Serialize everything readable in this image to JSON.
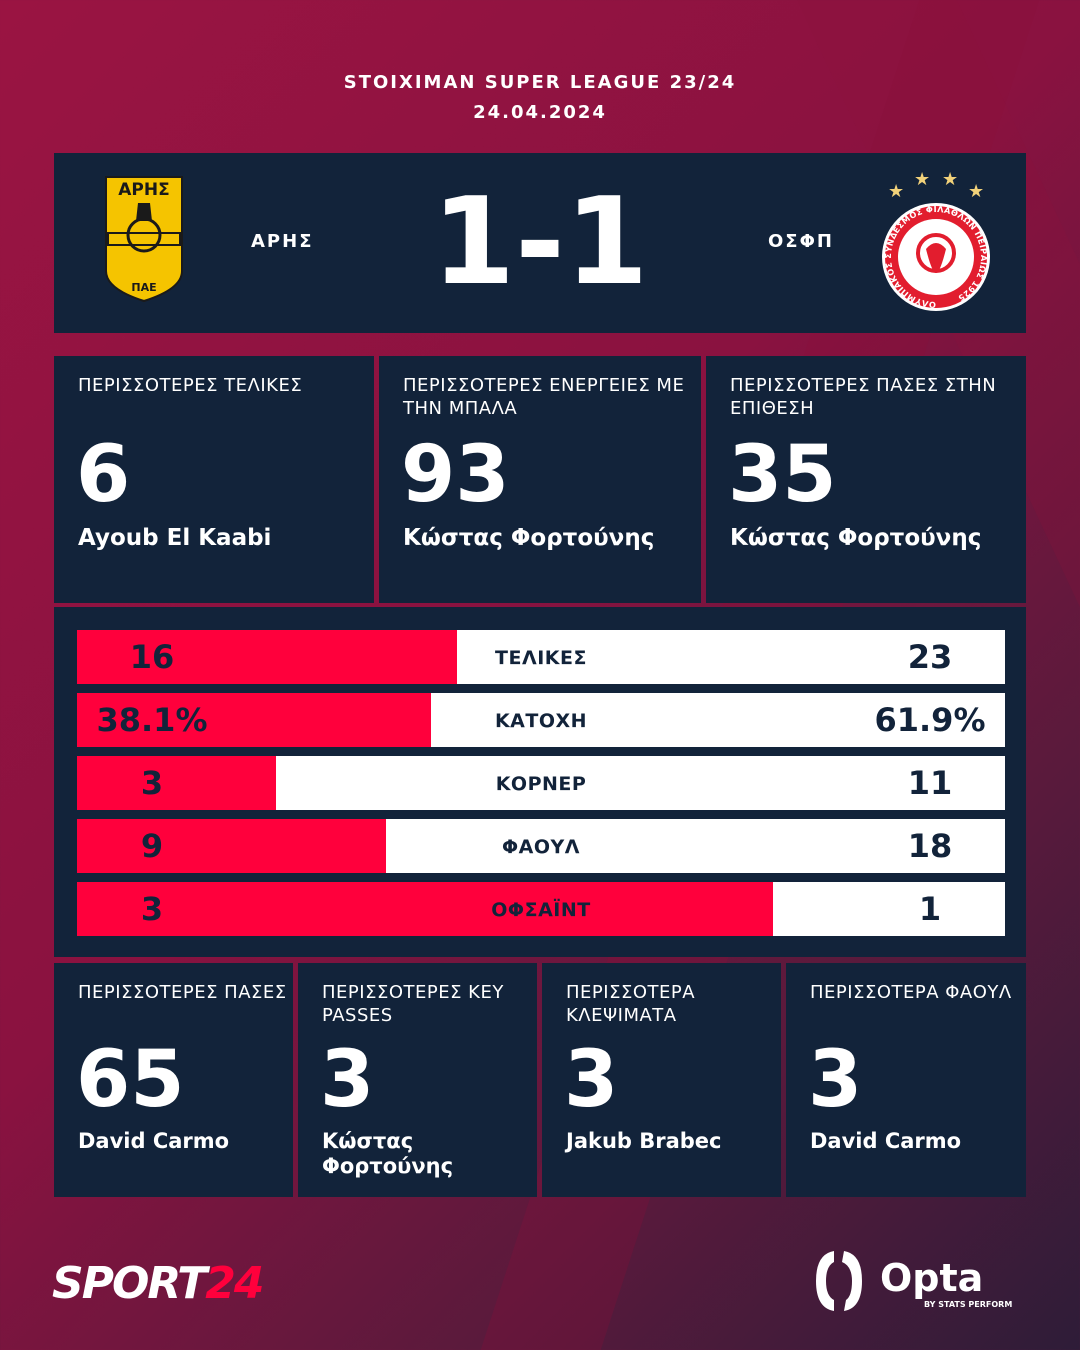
{
  "header": {
    "league": "STOIXIMAN SUPER LEAGUE 23/24",
    "date": "24.04.2024"
  },
  "match": {
    "home": "ΑΡΗΣ",
    "away": "ΟΣΦΠ",
    "score": "1-1",
    "home_logo_text": [
      "ΑΡΗΣ",
      "ΠΑΕ"
    ],
    "away_logo_text": "ΟΛΥΜΠΙΑΚΟΣ ΣΥΝΔΕΣΜΟΣ ΦΙΛΑΘΛΩΝ ΠΕΙΡΑΙΩΣ 1925"
  },
  "top_cards": [
    {
      "title": "ΠΕΡΙΣΣΟΤΕΡΕΣ ΤΕΛΙΚΕΣ",
      "value": "6",
      "player": "Ayoub El Kaabi"
    },
    {
      "title": "ΠΕΡΙΣΣΟΤΕΡΕΣ ΕΝΕΡΓΕΙΕΣ ΜΕ ΤΗΝ ΜΠΑΛΑ",
      "value": "93",
      "player": "Κώστας Φορτούνης"
    },
    {
      "title": "ΠΕΡΙΣΣΟΤΕΡΕΣ ΠΑΣΕΣ ΣΤΗΝ ΕΠΙΘΕΣΗ",
      "value": "35",
      "player": "Κώστας Φορτούνης"
    }
  ],
  "stats": [
    {
      "label": "ΤΕΛΙΚΕΣ",
      "home": "16",
      "away": "23",
      "home_share": 0.41
    },
    {
      "label": "ΚΑΤΟΧΗ",
      "home": "38.1%",
      "away": "61.9%",
      "home_share": 0.381
    },
    {
      "label": "ΚΟΡΝΕΡ",
      "home": "3",
      "away": "11",
      "home_share": 0.214
    },
    {
      "label": "ΦΑΟΥΛ",
      "home": "9",
      "away": "18",
      "home_share": 0.333
    },
    {
      "label": "ΟΦΣΑΪΝΤ",
      "home": "3",
      "away": "1",
      "home_share": 0.75
    }
  ],
  "bottom_cards": [
    {
      "title": "ΠΕΡΙΣΣΟΤΕΡΕΣ ΠΑΣΕΣ",
      "value": "65",
      "player": "David Carmo"
    },
    {
      "title": "ΠΕΡΙΣΣΟΤΕΡΕΣ KEY PASSES",
      "value": "3",
      "player": "Κώστας Φορτούνης"
    },
    {
      "title": "ΠΕΡΙΣΣΟΤΕΡΑ ΚΛΕΨΙΜΑΤΑ",
      "value": "3",
      "player": "Jakub Brabec"
    },
    {
      "title": "ΠΕΡΙΣΣΟΤΕΡΑ ΦΑΟΥΛ",
      "value": "3",
      "player": "David Carmo"
    }
  ],
  "footer": {
    "brand_a": "SPORT",
    "brand_b": "24",
    "opta": "Opta",
    "opta_sub": "BY STATS PERFORM"
  },
  "colors": {
    "navy": "#12233a",
    "red": "#ff003c",
    "background": "#8e1240"
  }
}
